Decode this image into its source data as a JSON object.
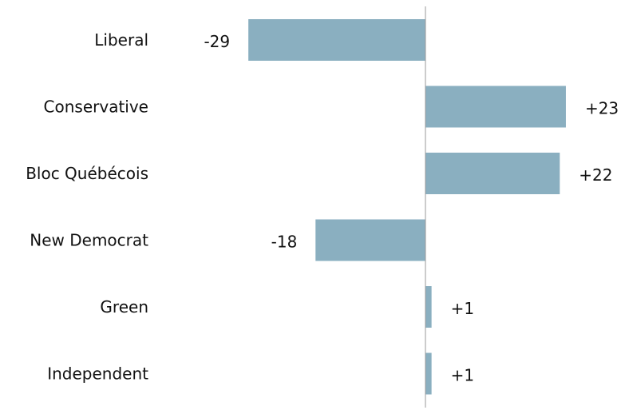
{
  "chart_data": {
    "type": "bar",
    "orientation": "horizontal",
    "categories": [
      "Liberal",
      "Conservative",
      "Bloc Québécois",
      "New Democrat",
      "Green",
      "Independent"
    ],
    "values": [
      -29,
      23,
      22,
      -18,
      1,
      1
    ],
    "data_labels": [
      "-29",
      "+23",
      "+22",
      "-18",
      "+1",
      "+1"
    ],
    "title": "",
    "xlabel": "",
    "ylabel": "",
    "xlim": [
      -35,
      35
    ],
    "grid": false,
    "legend": "none",
    "colors": {
      "bar": "#8aafc0",
      "axis": "#9a9a9a"
    }
  }
}
